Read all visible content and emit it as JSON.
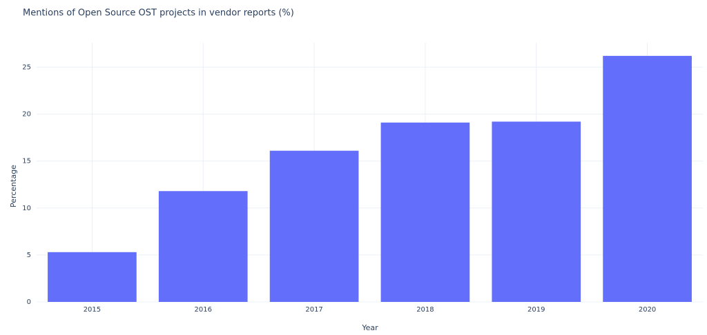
{
  "chart_data": {
    "type": "bar",
    "title": "Mentions of Open Source OST projects in vendor reports (%)",
    "x_label": "Year",
    "y_label": "Percentage",
    "categories": [
      "2015",
      "2016",
      "2017",
      "2018",
      "2019",
      "2020"
    ],
    "values": [
      5.3,
      11.8,
      16.1,
      19.1,
      19.2,
      26.2
    ],
    "color": "#636efa",
    "ylim": [
      0,
      27.6
    ],
    "yticks": [
      0,
      5,
      10,
      15,
      20,
      25
    ],
    "grid": true
  }
}
